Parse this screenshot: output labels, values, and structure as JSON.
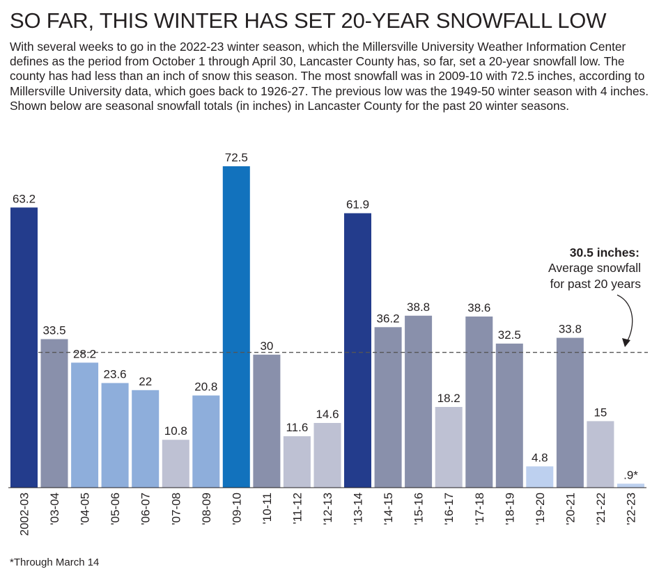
{
  "title": "SO FAR, THIS WINTER HAS SET 20-YEAR SNOWFALL LOW",
  "intro": "With several weeks to go in the 2022-23 winter season, which the Millersville University Weather Information Center defines as the period from October 1 through April 30, Lancaster County has, so far, set a 20-year snowfall low. The county has had less than an inch of snow this season. The most snowfall was in 2009-10 with 72.5 inches, according to Millersville University data, which goes back to 1926-27. The previous low was the 1949-50 winter season with 4 inches. Shown below are seasonal snowfall totals (in inches) in Lancaster County for the past 20 winter seasons.",
  "footnote": "*Through March 14",
  "chart_data": {
    "type": "bar",
    "title": "Seasonal snowfall totals (in inches) in Lancaster County",
    "unit": "inches",
    "categories": [
      "2002-03",
      "'03-04",
      "'04-05",
      "'05-06",
      "'06-07",
      "'07-08",
      "'08-09",
      "'09-10",
      "'10-11",
      "'11-12",
      "'12-13",
      "'13-14",
      "'14-15",
      "'15-16",
      "'16-17",
      "'17-18",
      "'18-19",
      "'19-20",
      "'20-21",
      "'21-22",
      "'22-23"
    ],
    "values": [
      63.2,
      33.5,
      28.2,
      23.6,
      22,
      10.8,
      20.8,
      72.5,
      30,
      11.6,
      14.6,
      61.9,
      36.2,
      38.8,
      18.2,
      38.6,
      32.5,
      4.8,
      33.8,
      15,
      0.9
    ],
    "value_labels": [
      "63.2",
      "33.5",
      "28.2",
      "23.6",
      "22",
      "10.8",
      "20.8",
      "72.5",
      "30",
      "11.6",
      "14.6",
      "61.9",
      "36.2",
      "38.8",
      "18.2",
      "38.6",
      "32.5",
      "4.8",
      "33.8",
      "15",
      ".9*"
    ],
    "bar_colors": [
      "#233c8c",
      "#8990ab",
      "#8eaedb",
      "#8eaedb",
      "#8eaedb",
      "#bec1d3",
      "#8eaedb",
      "#1272bd",
      "#8990ab",
      "#bec1d3",
      "#bec1d3",
      "#233c8c",
      "#8990ab",
      "#8990ab",
      "#bec1d3",
      "#8990ab",
      "#8990ab",
      "#bdd0ef",
      "#8990ab",
      "#bec1d3",
      "#bdd0ef"
    ],
    "ylim": [
      0,
      72.5
    ],
    "average": {
      "value": 30.5,
      "label_bold": "30.5 inches:",
      "label_line1": "Average snowfall",
      "label_line2": "for past 20 years"
    }
  }
}
